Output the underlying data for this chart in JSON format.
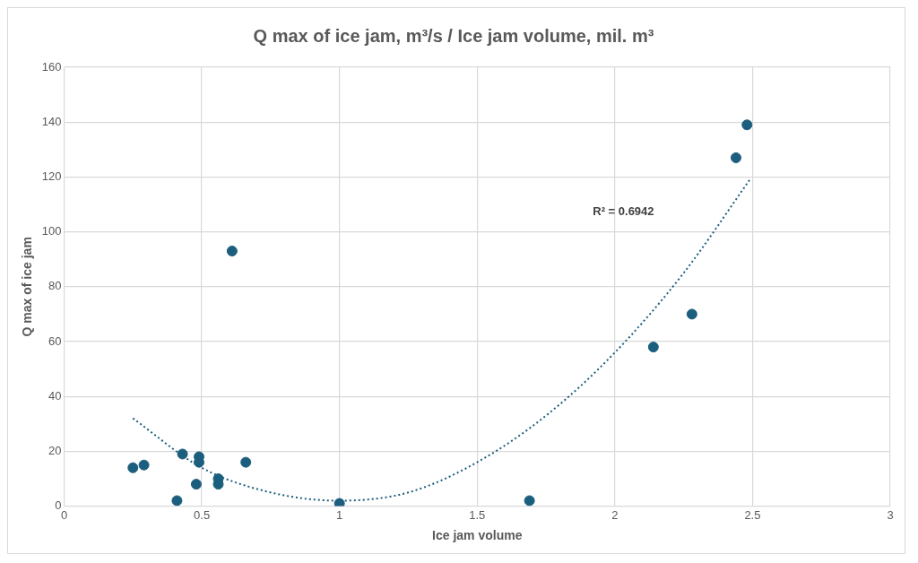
{
  "chart_data": {
    "type": "scatter",
    "title": "Q max of ice jam, m³/s / Ice jam volume, mil. m³",
    "xlabel": "Ice jam volume",
    "ylabel": "Q max of ice jam",
    "xlim": [
      0,
      3
    ],
    "xticks": [
      0,
      0.5,
      1,
      1.5,
      2,
      2.5,
      3
    ],
    "ylim": [
      0,
      160
    ],
    "yticks": [
      0,
      20,
      40,
      60,
      80,
      100,
      120,
      140,
      160
    ],
    "grid": true,
    "marker": "circle",
    "series": [
      {
        "color": "#1b5e7e",
        "x": [
          0.25,
          0.29,
          0.43,
          0.41,
          0.48,
          0.49,
          0.49,
          0.56,
          0.56,
          0.61,
          0.66,
          1.0,
          1.69,
          2.14,
          2.28,
          2.44,
          2.48
        ],
        "values": [
          14,
          15,
          19,
          2,
          8,
          18,
          16,
          10,
          8,
          93,
          16,
          1,
          2,
          58,
          70,
          127,
          139
        ]
      },
      {
        "type": "line",
        "color": "#1b5e7e",
        "line_style": "dotted",
        "marker": "none",
        "x": [
          0.25,
          0.5,
          0.75,
          1,
          1.25,
          1.5,
          1.75,
          2,
          2.25,
          2.49
        ],
        "values": [
          32,
          14,
          5,
          2,
          5,
          16,
          33,
          56,
          85,
          119
        ]
      }
    ],
    "annotations": [
      "R² = 0.6942"
    ]
  }
}
